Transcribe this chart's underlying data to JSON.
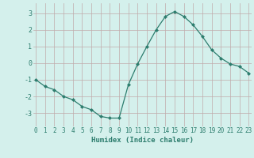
{
  "x": [
    0,
    1,
    2,
    3,
    4,
    5,
    6,
    7,
    8,
    9,
    10,
    11,
    12,
    13,
    14,
    15,
    16,
    17,
    18,
    19,
    20,
    21,
    22,
    23
  ],
  "y": [
    -1.0,
    -1.4,
    -1.6,
    -2.0,
    -2.2,
    -2.6,
    -2.8,
    -3.2,
    -3.3,
    -3.3,
    -1.3,
    -0.05,
    1.0,
    2.0,
    2.8,
    3.1,
    2.8,
    2.3,
    1.6,
    0.8,
    0.3,
    -0.05,
    -0.2,
    -0.6
  ],
  "line_color": "#2d7d6e",
  "marker": "D",
  "markersize": 2.0,
  "linewidth": 0.9,
  "xlabel": "Humidex (Indice chaleur)",
  "xlabel_fontsize": 6.5,
  "background_color": "#d4f0ec",
  "grid_color": "#c0aaaa",
  "ylim": [
    -3.8,
    3.6
  ],
  "yticks": [
    -3,
    -2,
    -1,
    0,
    1,
    2,
    3
  ],
  "xlim": [
    -0.3,
    23.3
  ],
  "xticks": [
    0,
    1,
    2,
    3,
    4,
    5,
    6,
    7,
    8,
    9,
    10,
    11,
    12,
    13,
    14,
    15,
    16,
    17,
    18,
    19,
    20,
    21,
    22,
    23
  ],
  "tick_fontsize": 5.5,
  "ytick_fontsize": 6.0
}
